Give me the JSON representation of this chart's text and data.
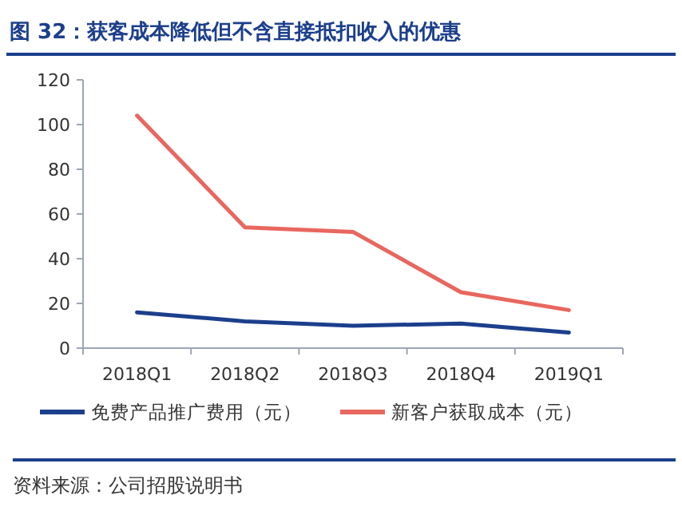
{
  "chart_data": {
    "type": "line",
    "title": "图 32：获客成本降低但不含直接抵扣收入的优惠",
    "categories": [
      "2018Q1",
      "2018Q2",
      "2018Q3",
      "2018Q4",
      "2019Q1"
    ],
    "series": [
      {
        "name": "免费产品推广费用（元）",
        "color": "#1c3f8c",
        "values": [
          16,
          12,
          10,
          11,
          7
        ]
      },
      {
        "name": "新客户获取成本（元）",
        "color": "#e8675f",
        "values": [
          104,
          54,
          52,
          25,
          17
        ]
      }
    ],
    "ylim": [
      0,
      120
    ],
    "yticks": [
      0,
      20,
      40,
      60,
      80,
      100,
      120
    ],
    "grid": false,
    "legend": "bottom",
    "marker": "none",
    "line_style": "solid",
    "annotations": [
      "资料来源：公司招股说明书"
    ]
  }
}
